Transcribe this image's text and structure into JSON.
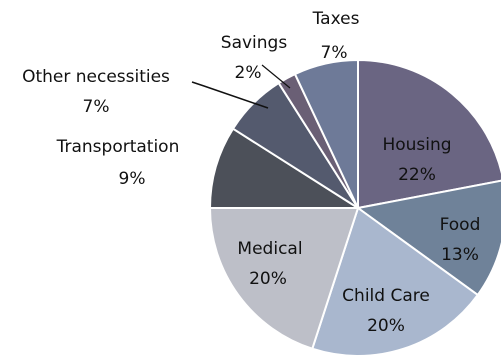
{
  "chart_data": {
    "type": "pie",
    "title": "",
    "slices": [
      {
        "label": "Housing",
        "value_label": "22%",
        "value": 22,
        "color": "#6a6582"
      },
      {
        "label": "Food",
        "value_label": "13%",
        "value": 13,
        "color": "#6f8299"
      },
      {
        "label": "Child Care",
        "value_label": "20%",
        "value": 20,
        "color": "#a9b7ce"
      },
      {
        "label": "Medical",
        "value_label": "20%",
        "value": 20,
        "color": "#bdbfc8"
      },
      {
        "label": "Transportation",
        "value_label": "9%",
        "value": 9,
        "color": "#4c5059"
      },
      {
        "label": "Other necessities",
        "value_label": "7%",
        "value": 7,
        "color": "#545a6e"
      },
      {
        "label": "Savings",
        "value_label": "2%",
        "value": 2,
        "color": "#6a5f75"
      },
      {
        "label": "Taxes",
        "value_label": "7%",
        "value": 7,
        "color": "#6e7a98"
      }
    ],
    "start_angle_deg": 90,
    "direction": "clockwise",
    "slice_border_color": "#ffffff",
    "legend": "none"
  }
}
